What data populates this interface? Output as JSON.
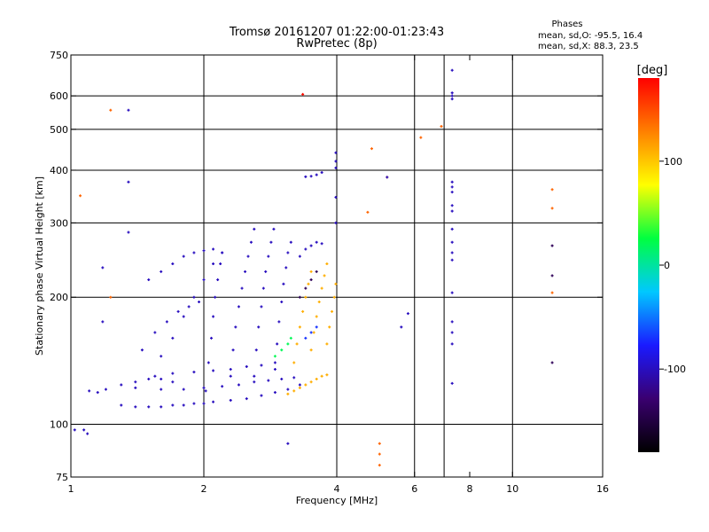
{
  "chart_data": {
    "type": "scatter",
    "title": "Tromsø 20161207 01:22:00-01:23:43",
    "subtitle": "RwPretec (8p)",
    "xlabel": "Frequency [MHz]",
    "ylabel": "Stationary phase Virtual Height [km]",
    "x_scale": "log",
    "y_scale": "log",
    "xlim": [
      1,
      16
    ],
    "ylim": [
      75,
      750
    ],
    "x_ticks": [
      1,
      2,
      4,
      6,
      8,
      10,
      16
    ],
    "x_tick_labels": [
      "1",
      "2",
      "4",
      "6",
      "8",
      "10",
      "16"
    ],
    "x_gridlines": [
      2,
      4,
      6,
      7,
      10
    ],
    "y_ticks": [
      75,
      100,
      200,
      300,
      400,
      500,
      600,
      750
    ],
    "y_tick_labels": [
      "75",
      "100",
      "200",
      "300",
      "400",
      "500",
      "600",
      "750"
    ],
    "y_gridlines": [
      100,
      200,
      300,
      400,
      500,
      600
    ],
    "grid": true,
    "stats": {
      "heading": "Phases",
      "line_o": "mean, sd,O: -95.5, 16.4",
      "line_x": "mean, sd,X:  88.3, 23.5"
    },
    "colorbar": {
      "label": "[deg]",
      "range": [
        -180,
        180
      ],
      "ticks": [
        -100,
        0,
        100
      ],
      "tick_labels": [
        "-100",
        "0",
        "100"
      ],
      "colormap": [
        "#000000",
        "#3a0070",
        "#1a1aff",
        "#00c8ff",
        "#00ff40",
        "#ffff00",
        "#ff8000",
        "#ff0000"
      ]
    },
    "traces": [
      {
        "phase": -100,
        "points": [
          [
            1.02,
            97
          ],
          [
            1.07,
            97
          ],
          [
            1.09,
            95
          ]
        ]
      },
      {
        "phase": -100,
        "points": [
          [
            1.1,
            120
          ],
          [
            1.15,
            119
          ],
          [
            1.2,
            121
          ],
          [
            1.3,
            124
          ],
          [
            1.4,
            126
          ],
          [
            1.5,
            128
          ],
          [
            1.6,
            128
          ],
          [
            1.7,
            126
          ]
        ]
      },
      {
        "phase": -100,
        "points": [
          [
            1.3,
            111
          ],
          [
            1.4,
            110
          ],
          [
            1.5,
            110
          ],
          [
            1.6,
            110
          ],
          [
            1.7,
            111
          ],
          [
            1.8,
            111
          ],
          [
            1.9,
            112
          ],
          [
            2.0,
            112
          ],
          [
            2.1,
            113
          ],
          [
            2.3,
            114
          ],
          [
            2.5,
            115
          ],
          [
            2.7,
            117
          ],
          [
            2.9,
            119
          ],
          [
            3.1,
            121
          ],
          [
            3.3,
            124
          ]
        ]
      },
      {
        "phase": -100,
        "points": [
          [
            1.4,
            122
          ],
          [
            1.6,
            121
          ],
          [
            1.8,
            121
          ],
          [
            2.0,
            122
          ],
          [
            2.2,
            123
          ],
          [
            2.4,
            124
          ],
          [
            2.6,
            126
          ],
          [
            2.8,
            127
          ],
          [
            3.0,
            128
          ],
          [
            3.2,
            129
          ]
        ]
      },
      {
        "phase": -100,
        "points": [
          [
            1.55,
            130
          ],
          [
            1.7,
            132
          ],
          [
            1.9,
            133
          ],
          [
            2.1,
            134
          ],
          [
            2.3,
            135
          ],
          [
            2.5,
            137
          ],
          [
            2.7,
            138
          ],
          [
            2.9,
            140
          ]
        ]
      },
      {
        "phase": -100,
        "points": [
          [
            1.6,
            145
          ],
          [
            1.7,
            160
          ],
          [
            1.8,
            180
          ],
          [
            1.9,
            200
          ],
          [
            2.0,
            220
          ],
          [
            2.1,
            240
          ],
          [
            2.2,
            255
          ]
        ]
      },
      {
        "phase": -100,
        "points": [
          [
            1.5,
            220
          ],
          [
            1.6,
            230
          ],
          [
            1.7,
            240
          ],
          [
            1.8,
            250
          ],
          [
            1.9,
            255
          ],
          [
            2.0,
            258
          ],
          [
            2.1,
            260
          ]
        ]
      },
      {
        "phase": -100,
        "points": [
          [
            1.45,
            150
          ],
          [
            1.55,
            165
          ],
          [
            1.65,
            175
          ],
          [
            1.75,
            185
          ],
          [
            1.85,
            190
          ],
          [
            1.95,
            195
          ]
        ]
      },
      {
        "phase": -100,
        "points": [
          [
            2.02,
            120
          ],
          [
            2.05,
            140
          ],
          [
            2.08,
            160
          ],
          [
            2.1,
            180
          ],
          [
            2.12,
            200
          ],
          [
            2.15,
            220
          ],
          [
            2.18,
            240
          ],
          [
            2.2,
            255
          ]
        ]
      },
      {
        "phase": -100,
        "points": [
          [
            2.3,
            130
          ],
          [
            2.33,
            150
          ],
          [
            2.36,
            170
          ],
          [
            2.4,
            190
          ],
          [
            2.44,
            210
          ],
          [
            2.48,
            230
          ],
          [
            2.52,
            250
          ],
          [
            2.56,
            270
          ],
          [
            2.6,
            290
          ]
        ]
      },
      {
        "phase": -100,
        "points": [
          [
            2.6,
            130
          ],
          [
            2.63,
            150
          ],
          [
            2.66,
            170
          ],
          [
            2.7,
            190
          ],
          [
            2.73,
            210
          ],
          [
            2.76,
            230
          ],
          [
            2.8,
            250
          ],
          [
            2.84,
            270
          ],
          [
            2.88,
            290
          ]
        ]
      },
      {
        "phase": -100,
        "points": [
          [
            2.9,
            135
          ],
          [
            2.93,
            155
          ],
          [
            2.96,
            175
          ],
          [
            3.0,
            195
          ],
          [
            3.03,
            215
          ],
          [
            3.07,
            235
          ],
          [
            3.1,
            255
          ],
          [
            3.15,
            270
          ]
        ]
      },
      {
        "phase": -100,
        "points": [
          [
            3.3,
            250
          ],
          [
            3.4,
            260
          ],
          [
            3.5,
            265
          ],
          [
            3.6,
            270
          ],
          [
            3.7,
            268
          ]
        ]
      },
      {
        "phase": -100,
        "points": [
          [
            3.4,
            386
          ],
          [
            3.5,
            387
          ],
          [
            3.6,
            390
          ],
          [
            3.7,
            395
          ]
        ]
      },
      {
        "phase": -100,
        "points": [
          [
            3.98,
            440
          ],
          [
            3.98,
            420
          ],
          [
            3.98,
            405
          ],
          [
            3.98,
            345
          ],
          [
            3.98,
            300
          ]
        ]
      },
      {
        "phase": 110,
        "points": [
          [
            3.1,
            118
          ],
          [
            3.2,
            120
          ],
          [
            3.3,
            122
          ],
          [
            3.4,
            124
          ],
          [
            3.5,
            126
          ],
          [
            3.6,
            128
          ],
          [
            3.7,
            130
          ],
          [
            3.8,
            131
          ]
        ]
      },
      {
        "phase": 110,
        "points": [
          [
            3.2,
            140
          ],
          [
            3.25,
            155
          ],
          [
            3.3,
            170
          ],
          [
            3.35,
            185
          ],
          [
            3.4,
            200
          ],
          [
            3.45,
            215
          ],
          [
            3.5,
            230
          ]
        ]
      },
      {
        "phase": 110,
        "points": [
          [
            3.5,
            150
          ],
          [
            3.55,
            165
          ],
          [
            3.6,
            180
          ],
          [
            3.65,
            195
          ],
          [
            3.7,
            210
          ],
          [
            3.75,
            225
          ],
          [
            3.8,
            240
          ]
        ]
      },
      {
        "phase": 110,
        "points": [
          [
            3.8,
            155
          ],
          [
            3.85,
            170
          ],
          [
            3.9,
            185
          ],
          [
            3.95,
            200
          ],
          [
            3.98,
            215
          ]
        ]
      },
      {
        "phase": 20,
        "points": [
          [
            2.9,
            145
          ],
          [
            3.0,
            150
          ],
          [
            3.1,
            155
          ],
          [
            3.15,
            160
          ]
        ]
      },
      {
        "phase": -70,
        "points": [
          [
            3.4,
            160
          ],
          [
            3.5,
            165
          ],
          [
            3.6,
            170
          ]
        ]
      },
      {
        "phase": -140,
        "points": [
          [
            3.3,
            200
          ],
          [
            3.4,
            210
          ],
          [
            3.5,
            220
          ],
          [
            3.6,
            230
          ]
        ]
      },
      {
        "phase": -100,
        "points": [
          [
            7.3,
            690
          ],
          [
            7.3,
            610
          ],
          [
            7.3,
            600
          ],
          [
            7.3,
            590
          ],
          [
            7.3,
            375
          ],
          [
            7.3,
            365
          ],
          [
            7.3,
            355
          ],
          [
            7.3,
            330
          ],
          [
            7.3,
            320
          ],
          [
            7.3,
            290
          ],
          [
            7.3,
            270
          ],
          [
            7.3,
            255
          ],
          [
            7.3,
            245
          ],
          [
            7.3,
            205
          ],
          [
            7.3,
            175
          ],
          [
            7.3,
            165
          ],
          [
            7.3,
            155
          ],
          [
            7.3,
            125
          ]
        ]
      },
      {
        "phase": -140,
        "points": [
          [
            12.3,
            265
          ],
          [
            12.3,
            225
          ],
          [
            12.3,
            140
          ]
        ]
      },
      {
        "phase": 140,
        "points": [
          [
            12.3,
            360
          ],
          [
            12.3,
            325
          ],
          [
            12.3,
            205
          ],
          [
            6.2,
            478
          ],
          [
            6.9,
            508
          ],
          [
            4.8,
            450
          ],
          [
            5.2,
            385
          ],
          [
            4.7,
            318
          ],
          [
            1.05,
            348
          ],
          [
            1.23,
            555
          ],
          [
            1.23,
            200
          ],
          [
            5.0,
            90
          ],
          [
            5.0,
            85
          ],
          [
            5.0,
            80
          ]
        ]
      },
      {
        "phase": -100,
        "points": [
          [
            1.35,
            555
          ],
          [
            1.35,
            375
          ],
          [
            1.35,
            285
          ],
          [
            1.18,
            235
          ],
          [
            1.18,
            175
          ],
          [
            5.2,
            385
          ],
          [
            5.8,
            183
          ],
          [
            5.6,
            170
          ],
          [
            3.1,
            90
          ]
        ]
      },
      {
        "phase": 175,
        "points": [
          [
            3.35,
            605
          ]
        ]
      }
    ]
  }
}
